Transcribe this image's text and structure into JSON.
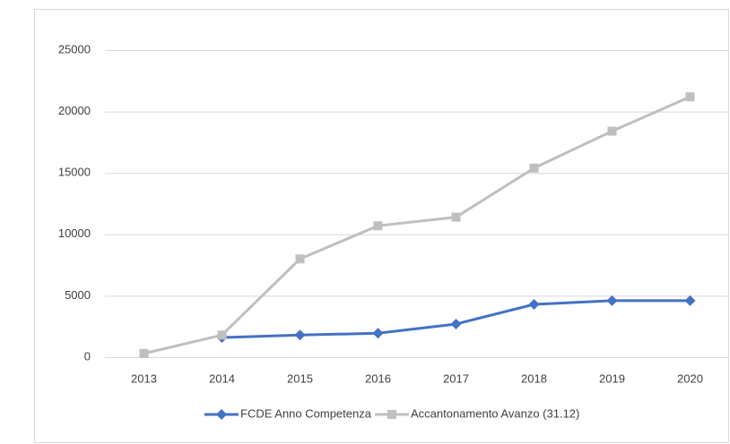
{
  "chart_data": {
    "type": "line",
    "categories": [
      "2013",
      "2014",
      "2015",
      "2016",
      "2017",
      "2018",
      "2019",
      "2020"
    ],
    "series": [
      {
        "name": "FCDE Anno Competenza",
        "color": "#4472c4",
        "marker": "diamond",
        "values": [
          null,
          1600,
          1800,
          1950,
          2700,
          4300,
          4600,
          4600
        ]
      },
      {
        "name": "Accantonamento Avanzo (31.12)",
        "color": "#bfbfbf",
        "marker": "square",
        "values": [
          300,
          1800,
          8000,
          10700,
          11400,
          15400,
          18400,
          21200
        ]
      }
    ],
    "ylim": [
      0,
      25000
    ],
    "yticks": [
      0,
      5000,
      10000,
      15000,
      20000,
      25000
    ],
    "grid": true,
    "legend": "bottom"
  }
}
